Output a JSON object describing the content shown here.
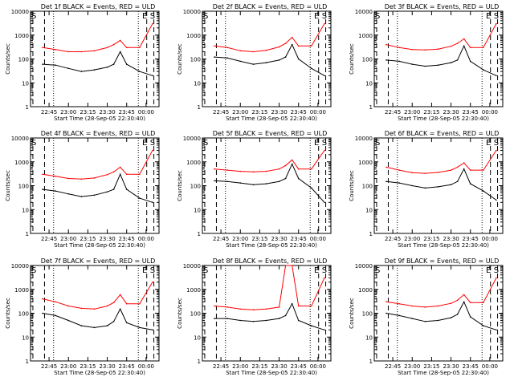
{
  "page": {
    "background": "#ffffff"
  },
  "colors": {
    "events": "#000000",
    "uld": "#ff0000",
    "axes": "#000000"
  },
  "shared": {
    "xlabel": "Start Time (28-Sep-05 22:30:40)",
    "ylabel": "Counts/sec",
    "xticks": [
      "22:45",
      "23:00",
      "23:15",
      "23:30",
      "23:45",
      "00:00"
    ],
    "yticks": [
      "1",
      "10",
      "100",
      "1000",
      "10000"
    ],
    "ylim": [
      1,
      10000
    ],
    "yscale": "log",
    "xlim": [
      "22:30:40",
      "00:10:00"
    ],
    "markers": {
      "start": "S",
      "end_e": "E",
      "end_s": "S"
    }
  },
  "chart_data": [
    {
      "type": "line",
      "title": "Det 1f BLACK = Events, RED = ULD",
      "x": [
        "22:40",
        "22:50",
        "23:00",
        "23:10",
        "23:20",
        "23:30",
        "23:35",
        "23:40",
        "23:45",
        "23:55",
        "00:05"
      ],
      "series": [
        {
          "values": [
            60,
            55,
            40,
            30,
            35,
            45,
            60,
            200,
            60,
            30,
            20
          ]
        },
        {
          "values": [
            300,
            250,
            200,
            200,
            220,
            300,
            400,
            600,
            300,
            300,
            3000
          ]
        }
      ]
    },
    {
      "type": "line",
      "title": "Det 2f BLACK = Events, RED = ULD",
      "x": [
        "22:40",
        "22:50",
        "23:00",
        "23:10",
        "23:20",
        "23:30",
        "23:35",
        "23:40",
        "23:45",
        "23:55",
        "00:05"
      ],
      "series": [
        {
          "values": [
            120,
            110,
            80,
            60,
            70,
            90,
            120,
            400,
            100,
            40,
            20
          ]
        },
        {
          "values": [
            350,
            300,
            220,
            200,
            230,
            320,
            450,
            800,
            350,
            350,
            3000
          ]
        }
      ]
    },
    {
      "type": "line",
      "title": "Det 3f BLACK = Events, RED = ULD",
      "x": [
        "22:40",
        "22:50",
        "23:00",
        "23:10",
        "23:20",
        "23:30",
        "23:35",
        "23:40",
        "23:45",
        "23:55",
        "00:05"
      ],
      "series": [
        {
          "values": [
            90,
            80,
            60,
            50,
            55,
            70,
            90,
            350,
            80,
            35,
            20
          ]
        },
        {
          "values": [
            400,
            300,
            250,
            240,
            260,
            340,
            450,
            700,
            300,
            300,
            3000
          ]
        }
      ]
    },
    {
      "type": "line",
      "title": "Det 4f BLACK = Events, RED = ULD",
      "x": [
        "22:40",
        "22:50",
        "23:00",
        "23:10",
        "23:20",
        "23:30",
        "23:35",
        "23:40",
        "23:45",
        "23:55",
        "00:05"
      ],
      "series": [
        {
          "values": [
            70,
            60,
            45,
            35,
            40,
            55,
            70,
            300,
            70,
            30,
            20
          ]
        },
        {
          "values": [
            300,
            250,
            200,
            190,
            210,
            290,
            380,
            600,
            300,
            300,
            3000
          ]
        }
      ]
    },
    {
      "type": "line",
      "title": "Det 5f BLACK = Events, RED = ULD",
      "x": [
        "22:40",
        "22:50",
        "23:00",
        "23:10",
        "23:20",
        "23:30",
        "23:35",
        "23:40",
        "23:45",
        "23:55",
        "00:05"
      ],
      "series": [
        {
          "values": [
            160,
            150,
            130,
            110,
            120,
            150,
            200,
            800,
            200,
            80,
            20
          ]
        },
        {
          "values": [
            500,
            450,
            400,
            380,
            400,
            500,
            700,
            1200,
            500,
            500,
            3000
          ]
        }
      ]
    },
    {
      "type": "line",
      "title": "Det 6f BLACK = Events, RED = ULD",
      "x": [
        "22:40",
        "22:50",
        "23:00",
        "23:10",
        "23:20",
        "23:30",
        "23:35",
        "23:40",
        "23:45",
        "23:55",
        "00:05"
      ],
      "series": [
        {
          "values": [
            150,
            130,
            100,
            80,
            90,
            110,
            150,
            500,
            120,
            60,
            25
          ]
        },
        {
          "values": [
            600,
            450,
            350,
            330,
            360,
            450,
            600,
            900,
            450,
            450,
            3000
          ]
        }
      ]
    },
    {
      "type": "line",
      "title": "Det 7f BLACK = Events, RED = ULD",
      "x": [
        "22:40",
        "22:50",
        "23:00",
        "23:10",
        "23:20",
        "23:30",
        "23:35",
        "23:40",
        "23:45",
        "23:55",
        "00:05"
      ],
      "series": [
        {
          "values": [
            100,
            80,
            50,
            30,
            25,
            30,
            45,
            150,
            40,
            25,
            20
          ]
        },
        {
          "values": [
            400,
            300,
            200,
            160,
            150,
            200,
            280,
            600,
            250,
            250,
            2000
          ]
        }
      ]
    },
    {
      "type": "line",
      "title": "Det 8f BLACK = Events, RED = ULD",
      "x": [
        "22:40",
        "22:50",
        "23:00",
        "23:10",
        "23:20",
        "23:30",
        "23:35",
        "23:40",
        "23:45",
        "23:55",
        "00:05"
      ],
      "series": [
        {
          "values": [
            60,
            60,
            50,
            45,
            50,
            60,
            80,
            250,
            50,
            30,
            20
          ]
        },
        {
          "values": [
            200,
            180,
            150,
            140,
            150,
            180,
            10000,
            10000,
            200,
            200,
            3000
          ]
        }
      ]
    },
    {
      "type": "line",
      "title": "Det 9f BLACK = Events, RED = ULD",
      "x": [
        "22:40",
        "22:50",
        "23:00",
        "23:10",
        "23:20",
        "23:30",
        "23:35",
        "23:40",
        "23:45",
        "23:55",
        "00:05"
      ],
      "series": [
        {
          "values": [
            100,
            80,
            60,
            45,
            50,
            65,
            90,
            300,
            70,
            30,
            20
          ]
        },
        {
          "values": [
            300,
            250,
            200,
            180,
            200,
            260,
            350,
            600,
            280,
            280,
            3000
          ]
        }
      ]
    }
  ]
}
